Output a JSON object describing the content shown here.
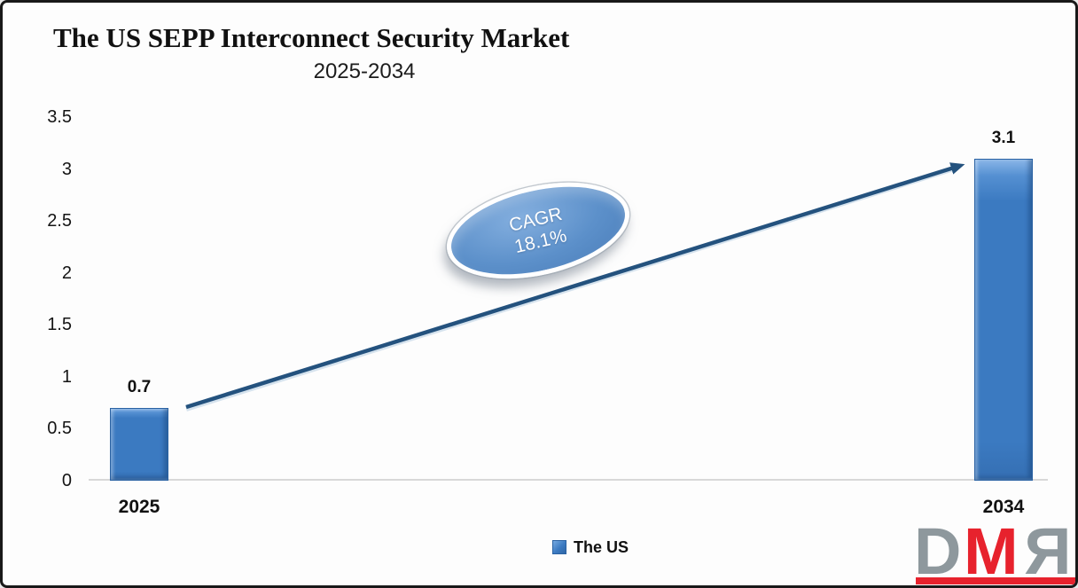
{
  "chart_data": {
    "type": "bar",
    "title": "The US SEPP Interconnect Security Market",
    "subtitle": "2025-2034",
    "categories": [
      "2025",
      "2034"
    ],
    "series": [
      {
        "name": "The US",
        "values": [
          0.7,
          3.1
        ]
      }
    ],
    "data_labels": [
      "0.7",
      "3.1"
    ],
    "y_ticks": [
      "3.5",
      "3",
      "2.5",
      "2",
      "1.5",
      "1",
      "0.5",
      "0"
    ],
    "ylim": [
      0,
      3.5
    ],
    "grid": false,
    "legend": {
      "position": "bottom",
      "entries": [
        "The US"
      ]
    },
    "annotation": {
      "line1": "CAGR",
      "line2": "18.1%"
    },
    "colors": {
      "bar": "#3b7ac1",
      "bar_highlight": "#8ab6e8",
      "bar_edge": "#2a62a3",
      "arrow": "#24527e",
      "ellipse_fill": "#5c90ca",
      "ellipse_border": "#ffffff",
      "ellipse_text": "#ffffff",
      "baseline": "#d8d8d8"
    }
  },
  "logo": {
    "letter_d": "D",
    "letter_m": "M",
    "letter_r": "R",
    "gray": "#8e989d",
    "red": "#e7222d"
  }
}
